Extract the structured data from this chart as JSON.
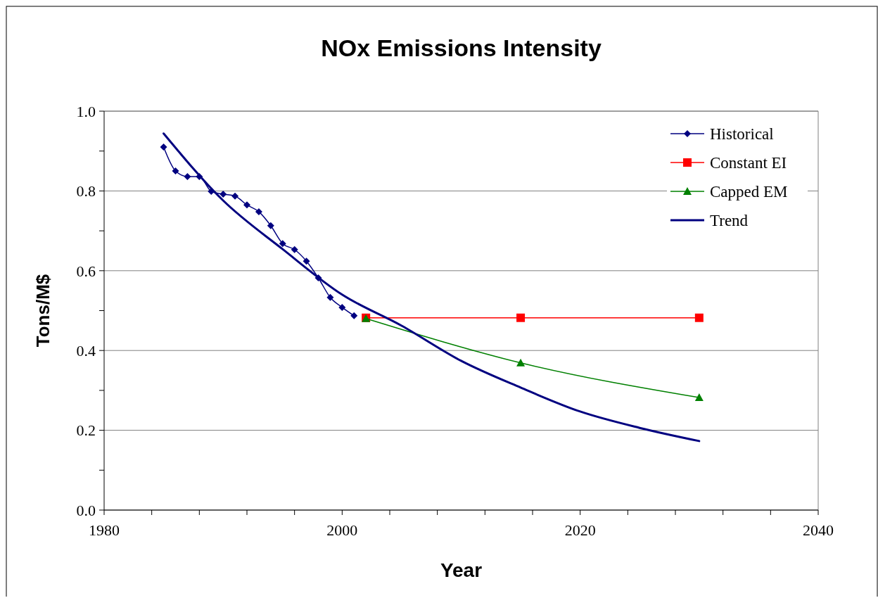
{
  "chart_data": {
    "type": "line",
    "title": "NOx Emissions Intensity",
    "xlabel": "Year",
    "ylabel": "Tons/M$",
    "xlim": [
      1980,
      2040
    ],
    "ylim": [
      0,
      1
    ],
    "xticks": [
      1980,
      {
        "value": 1984,
        "label": null
      },
      {
        "value": 1988,
        "label": null
      },
      {
        "value": 1992,
        "label": null
      },
      {
        "value": 1996,
        "label": null
      },
      2000,
      {
        "value": 2004,
        "label": null
      },
      {
        "value": 2008,
        "label": null
      },
      {
        "value": 2012,
        "label": null
      },
      {
        "value": 2016,
        "label": null
      },
      2020,
      {
        "value": 2024,
        "label": null
      },
      {
        "value": 2028,
        "label": null
      },
      {
        "value": 2032,
        "label": null
      },
      {
        "value": 2036,
        "label": null
      },
      2040
    ],
    "yticks": [
      {
        "value": 0,
        "label": "0.0"
      },
      {
        "value": 0.1,
        "label": null
      },
      {
        "value": 0.2,
        "label": "0.2"
      },
      {
        "value": 0.3,
        "label": null
      },
      {
        "value": 0.4,
        "label": "0.4"
      },
      {
        "value": 0.5,
        "label": null
      },
      {
        "value": 0.6,
        "label": "0.6"
      },
      {
        "value": 0.7,
        "label": null
      },
      {
        "value": 0.8,
        "label": "0.8"
      },
      {
        "value": 0.9,
        "label": null
      },
      {
        "value": 1,
        "label": "1.0"
      }
    ],
    "grid": "y",
    "legend": "top right",
    "series": [
      {
        "name": "Historical",
        "color": "#000080",
        "marker": "diamond",
        "x": [
          1985,
          1986,
          1987,
          1988,
          1989,
          1990,
          1991,
          1992,
          1993,
          1994,
          1995,
          1996,
          1997,
          1998,
          1999,
          2000,
          2001
        ],
        "values": [
          0.91,
          0.85,
          0.836,
          0.836,
          0.799,
          0.792,
          0.787,
          0.765,
          0.748,
          0.713,
          0.668,
          0.653,
          0.624,
          0.582,
          0.533,
          0.508,
          0.487
        ]
      },
      {
        "name": "Constant EI",
        "color": "#ff0000",
        "marker": "square",
        "x": [
          2002,
          2015,
          2030
        ],
        "values": [
          0.482,
          0.482,
          0.482
        ]
      },
      {
        "name": "Capped EM",
        "color": "#008000",
        "marker": "triangle",
        "x": [
          2002,
          2015,
          2030
        ],
        "values": [
          0.48,
          0.369,
          0.282
        ]
      },
      {
        "name": "Trend",
        "color": "#000080",
        "marker": "none",
        "x": [
          1985,
          1990,
          1995,
          2000,
          2005,
          2010,
          2015,
          2020,
          2025,
          2030
        ],
        "values": [
          0.944,
          0.776,
          0.654,
          0.54,
          0.462,
          0.374,
          0.307,
          0.247,
          0.206,
          0.173
        ]
      }
    ]
  }
}
